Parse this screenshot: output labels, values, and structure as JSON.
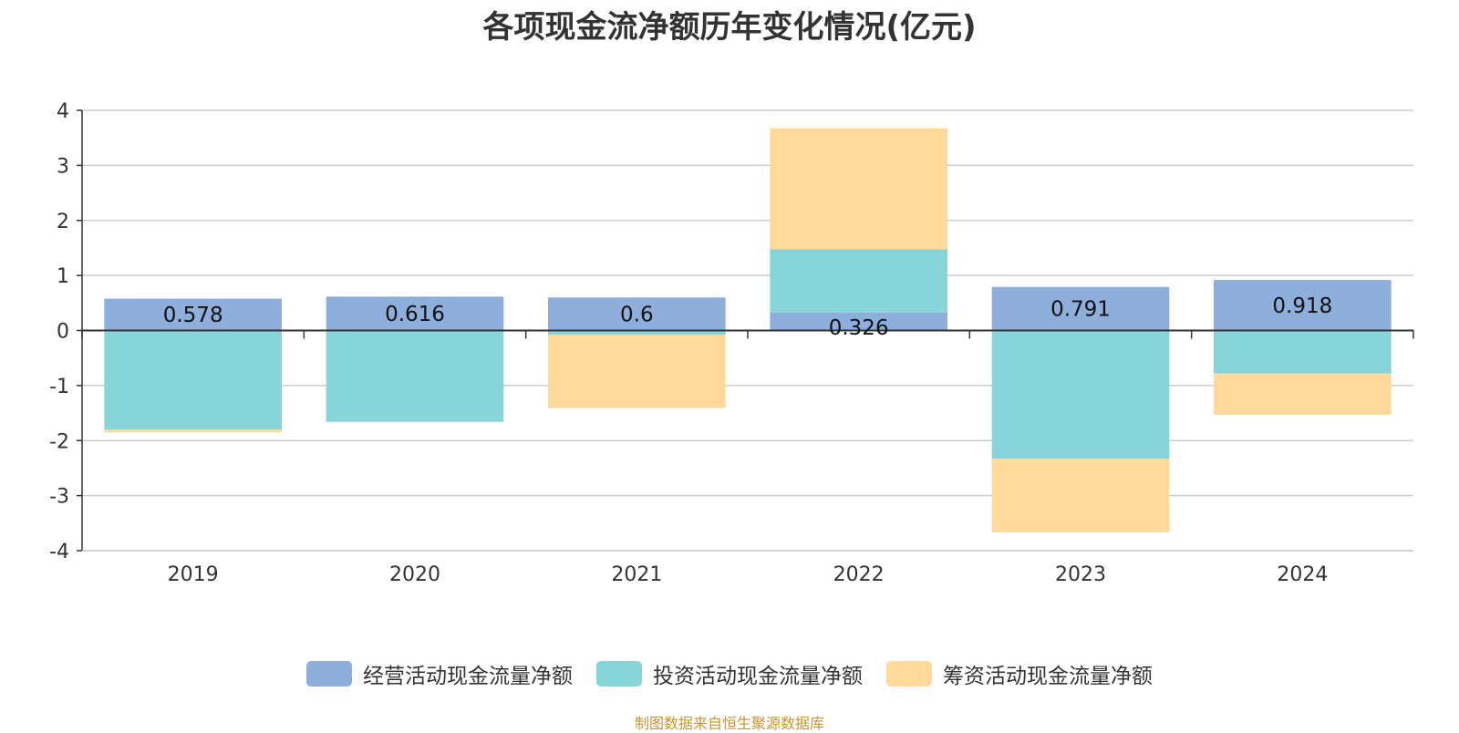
{
  "title": "各项现金流净额历年变化情况(亿元)",
  "source_note": "制图数据来自恒生聚源数据库",
  "chart_data": {
    "type": "bar",
    "stacked": true,
    "title": "各项现金流净额历年变化情况(亿元)",
    "xlabel": "",
    "ylabel": "",
    "categories": [
      "2019",
      "2020",
      "2021",
      "2022",
      "2023",
      "2024"
    ],
    "ylim": [
      -4,
      4
    ],
    "yticks": [
      4,
      3,
      2,
      1,
      0,
      -1,
      -2,
      -3,
      -4
    ],
    "grid": true,
    "legend_position": "bottom",
    "series": [
      {
        "name": "经营活动现金流量净额",
        "color": "#8eaedb",
        "values": [
          0.578,
          0.616,
          0.6,
          0.326,
          0.791,
          0.918
        ],
        "labels": [
          "0.578",
          "0.616",
          "0.6",
          "0.326",
          "0.791",
          "0.918"
        ]
      },
      {
        "name": "投资活动现金流量净额",
        "color": "#87d5d8",
        "values": [
          -1.8,
          -1.66,
          -0.08,
          1.15,
          -2.33,
          -0.78
        ]
      },
      {
        "name": "筹资活动现金流量净额",
        "color": "#ffd999",
        "values": [
          -0.05,
          0,
          -1.33,
          2.2,
          -1.34,
          -0.75
        ]
      }
    ]
  }
}
